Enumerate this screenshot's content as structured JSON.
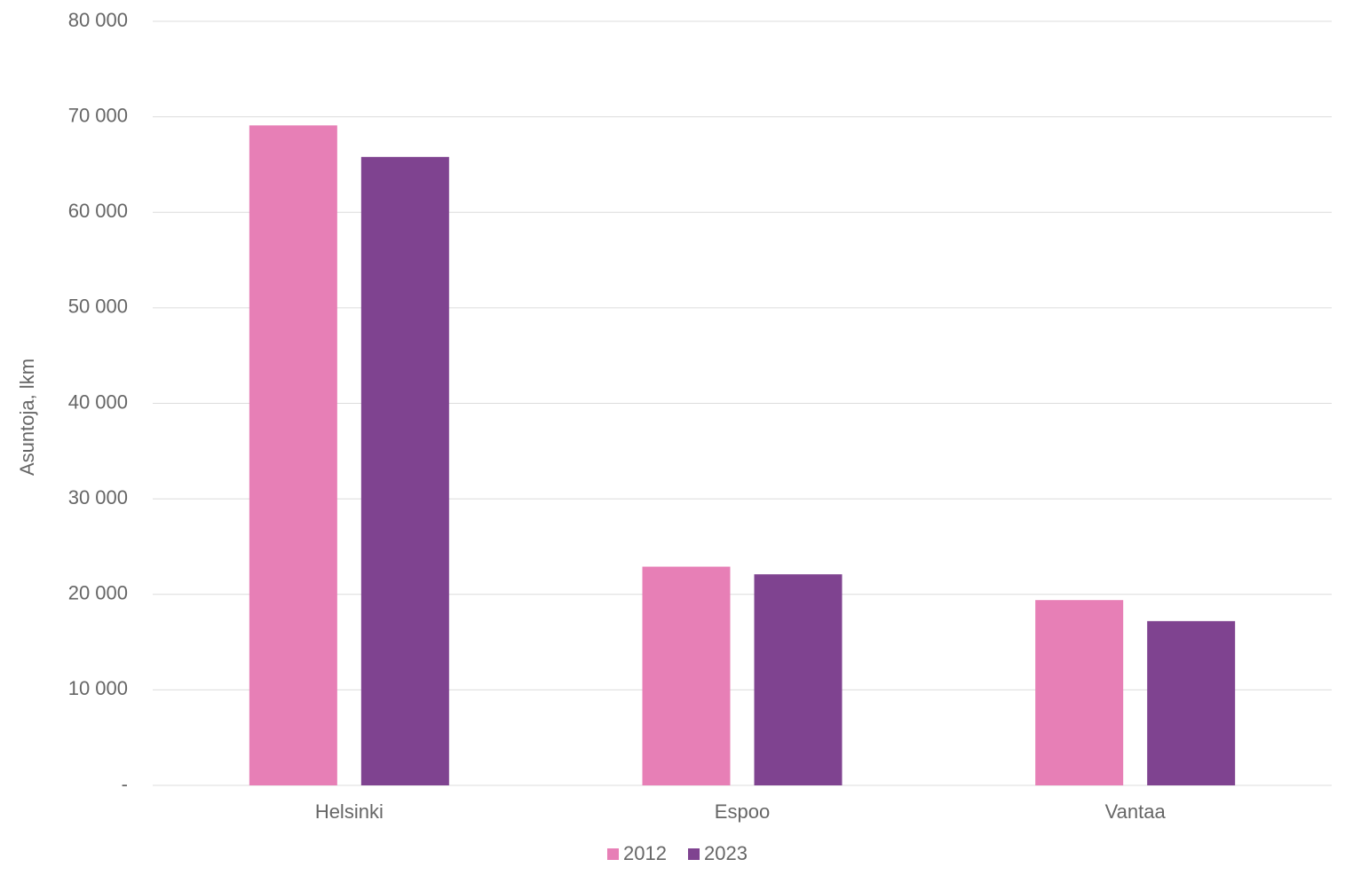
{
  "chart_data": {
    "type": "bar",
    "y_label": "Asuntoja, lkm",
    "categories": [
      "Helsinki",
      "Espoo",
      "Vantaa"
    ],
    "series": [
      {
        "name": "2012",
        "color": "#e77fb6",
        "values": [
          69100,
          22900,
          19400
        ]
      },
      {
        "name": "2023",
        "color": "#7f4390",
        "values": [
          65800,
          22100,
          17200
        ]
      }
    ],
    "ylim": [
      0,
      80000
    ],
    "yticks": [
      {
        "value": 0,
        "label": "-"
      },
      {
        "value": 10000,
        "label": "10 000"
      },
      {
        "value": 20000,
        "label": "20 000"
      },
      {
        "value": 30000,
        "label": "30 000"
      },
      {
        "value": 40000,
        "label": "40 000"
      },
      {
        "value": 50000,
        "label": "50 000"
      },
      {
        "value": 60000,
        "label": "60 000"
      },
      {
        "value": 70000,
        "label": "70 000"
      },
      {
        "value": 80000,
        "label": "80 000"
      }
    ],
    "grid": true,
    "legend": "bottom"
  }
}
